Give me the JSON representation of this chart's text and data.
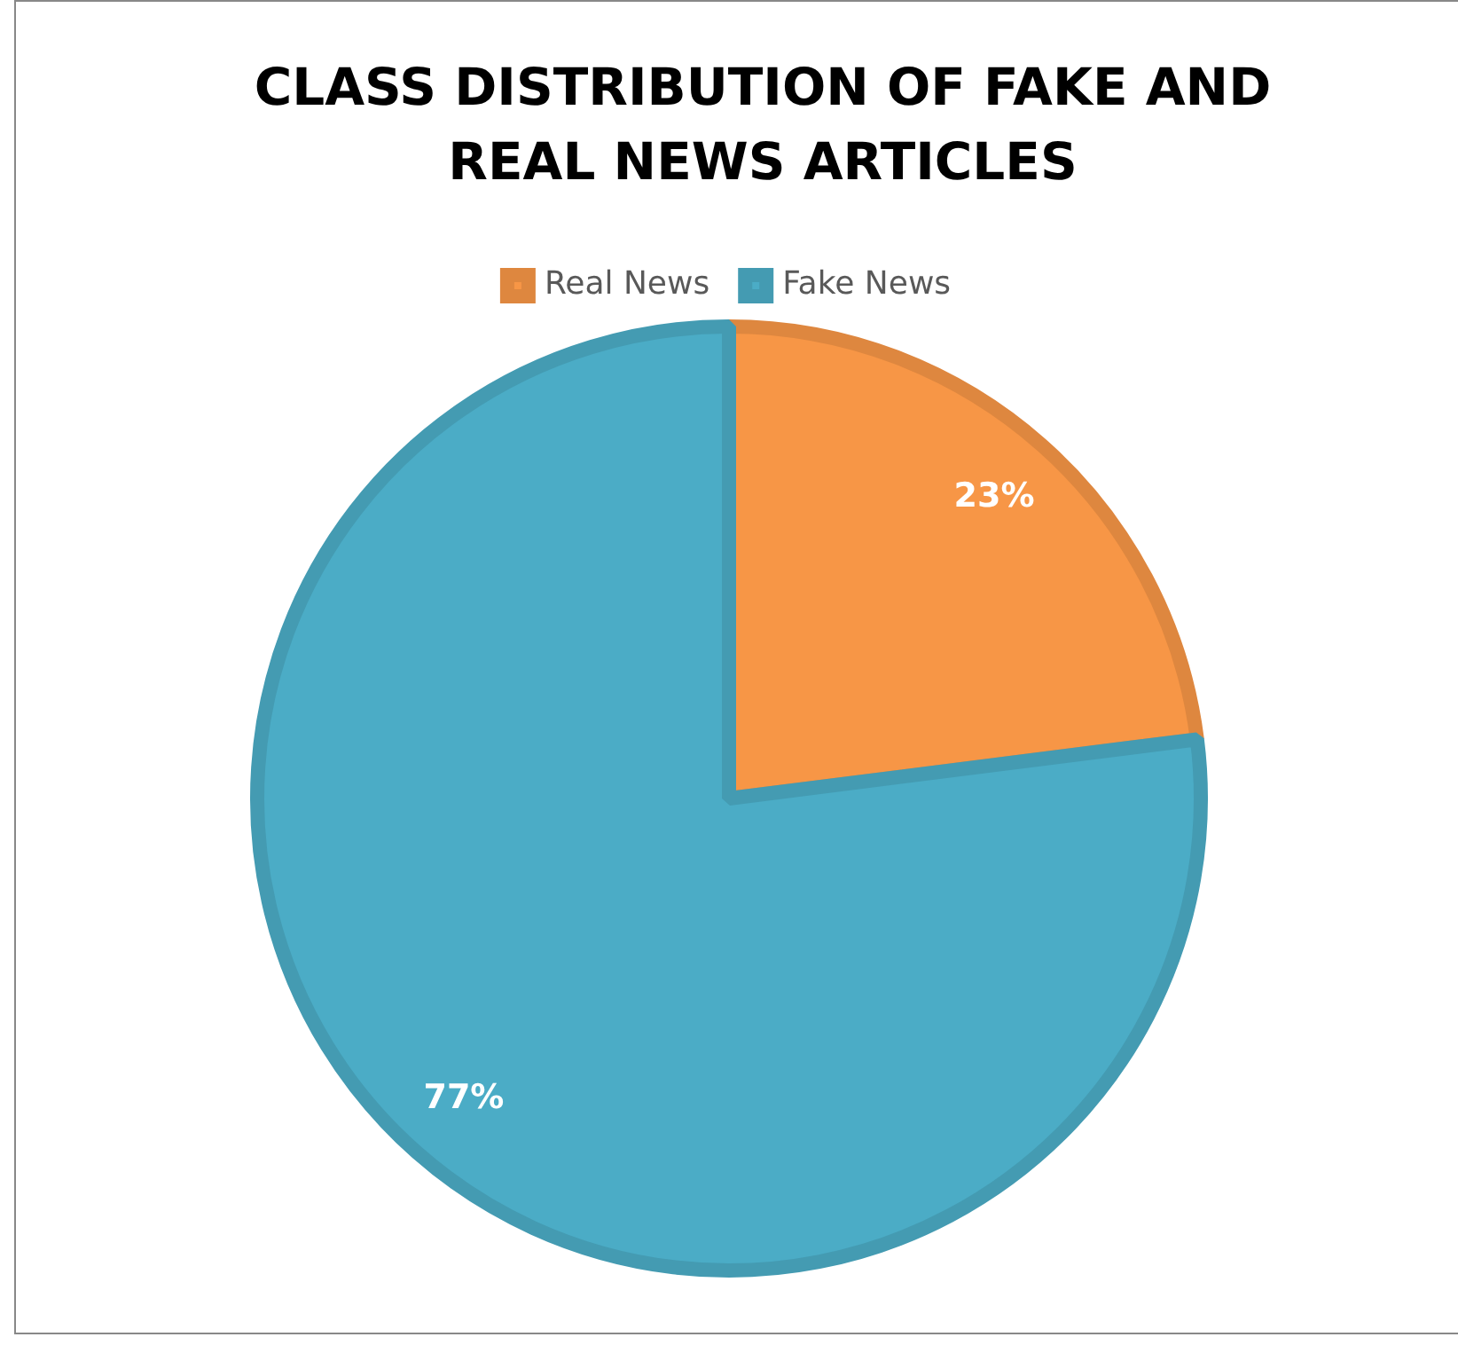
{
  "chart_data": {
    "type": "pie",
    "title": "CLASS DISTRIBUTION OF FAKE AND REAL NEWS ARTICLES",
    "categories": [
      "Real News",
      "Fake News"
    ],
    "values": [
      23,
      77
    ],
    "colors": [
      "#f79646",
      "#4bacc6"
    ],
    "value_labels": [
      "23%",
      "77%"
    ],
    "legend": "top"
  }
}
